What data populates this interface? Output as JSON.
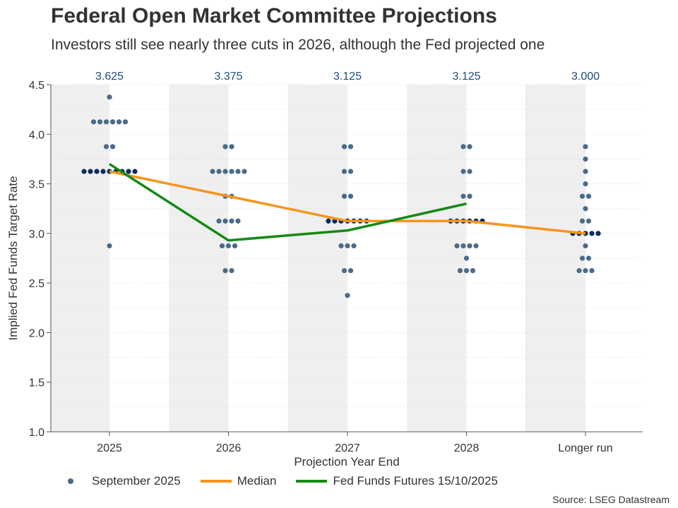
{
  "title": "Federal Open Market Committee Projections",
  "subtitle": "Investors still see nearly three cuts in 2026, although the Fed projected one",
  "source": "Source: LSEG Datastream",
  "legend": {
    "dots_label": "September 2025",
    "median_label": "Median",
    "futures_label": "Fed Funds Futures 15/10/2025"
  },
  "colors": {
    "dots": "#4a6b8a",
    "dots_dense": "#0b2e5a",
    "median": "#f7941d",
    "futures": "#138a13",
    "shade": "#efefef",
    "median_label": "#1f4e79"
  },
  "chart_data": {
    "type": "scatter",
    "xlabel": "Projection Year End",
    "ylabel": "Implied Fed Funds Target Rate",
    "categories": [
      "2025",
      "2026",
      "2027",
      "2028",
      "Longer run"
    ],
    "ylim": [
      1.0,
      4.5
    ],
    "yticks": [
      "1.0",
      "1.5",
      "2.0",
      "2.5",
      "3.0",
      "3.5",
      "4.0",
      "4.5"
    ],
    "grid": true,
    "median_labels": [
      "3.625",
      "3.375",
      "3.125",
      "3.125",
      "3.000"
    ],
    "dot_plot": [
      [
        {
          "y": 4.375,
          "n": 1
        },
        {
          "y": 4.125,
          "n": 6
        },
        {
          "y": 3.875,
          "n": 2
        },
        {
          "y": 3.625,
          "n": 9
        },
        {
          "y": 2.875,
          "n": 1
        }
      ],
      [
        {
          "y": 3.875,
          "n": 2
        },
        {
          "y": 3.625,
          "n": 6
        },
        {
          "y": 3.375,
          "n": 2
        },
        {
          "y": 3.125,
          "n": 4
        },
        {
          "y": 2.875,
          "n": 3
        },
        {
          "y": 2.625,
          "n": 2
        }
      ],
      [
        {
          "y": 3.875,
          "n": 2
        },
        {
          "y": 3.625,
          "n": 2
        },
        {
          "y": 3.375,
          "n": 2
        },
        {
          "y": 3.125,
          "n": 7
        },
        {
          "y": 2.875,
          "n": 3
        },
        {
          "y": 2.625,
          "n": 2
        },
        {
          "y": 2.375,
          "n": 1
        }
      ],
      [
        {
          "y": 3.875,
          "n": 2
        },
        {
          "y": 3.625,
          "n": 2
        },
        {
          "y": 3.375,
          "n": 2
        },
        {
          "y": 3.125,
          "n": 6
        },
        {
          "y": 2.875,
          "n": 4
        },
        {
          "y": 2.75,
          "n": 1
        },
        {
          "y": 2.625,
          "n": 3
        }
      ],
      [
        {
          "y": 3.875,
          "n": 1
        },
        {
          "y": 3.75,
          "n": 1
        },
        {
          "y": 3.625,
          "n": 1
        },
        {
          "y": 3.5,
          "n": 1
        },
        {
          "y": 3.375,
          "n": 2
        },
        {
          "y": 3.25,
          "n": 1
        },
        {
          "y": 3.125,
          "n": 2
        },
        {
          "y": 3.0,
          "n": 5
        },
        {
          "y": 2.875,
          "n": 1
        },
        {
          "y": 2.75,
          "n": 2
        },
        {
          "y": 2.625,
          "n": 3
        }
      ]
    ],
    "series": [
      {
        "name": "Median",
        "values": [
          3.625,
          3.375,
          3.125,
          3.125,
          3.0
        ]
      },
      {
        "name": "Fed Funds Futures 15/10/2025",
        "values": [
          3.7,
          2.93,
          3.03,
          3.3
        ]
      }
    ]
  }
}
